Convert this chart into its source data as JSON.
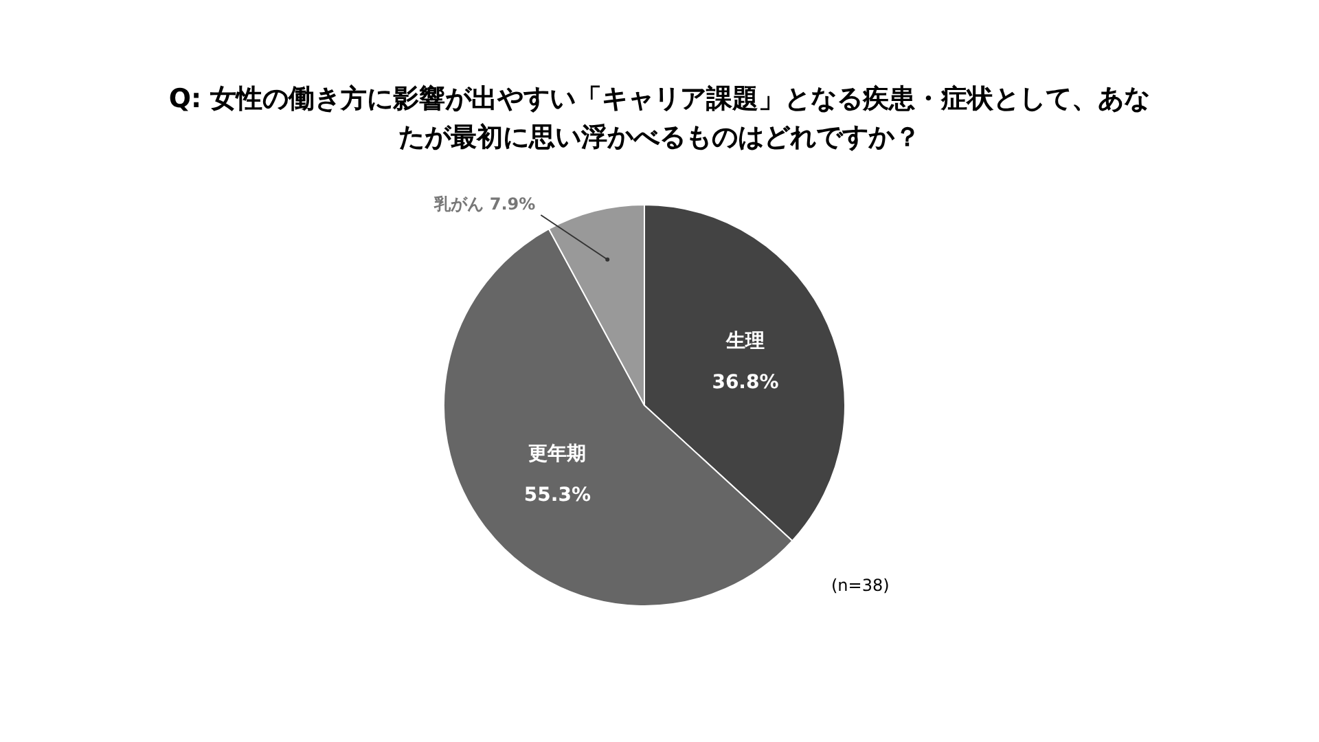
{
  "chart_data": {
    "type": "pie",
    "title": "Q: 女性の働き方に影響が出やすい「キャリア課題」となる疾患・症状として、あなたが最初に思い浮かべるものはどれですか？",
    "categories": [
      "生理",
      "更年期",
      "乳がん"
    ],
    "values": [
      36.8,
      55.3,
      7.9
    ],
    "value_labels": [
      "36.8%",
      "55.3%",
      "7.9%"
    ],
    "colors": [
      "#434343",
      "#666666",
      "#999999"
    ],
    "legend": false,
    "annotations": [
      "(n=38)"
    ]
  }
}
